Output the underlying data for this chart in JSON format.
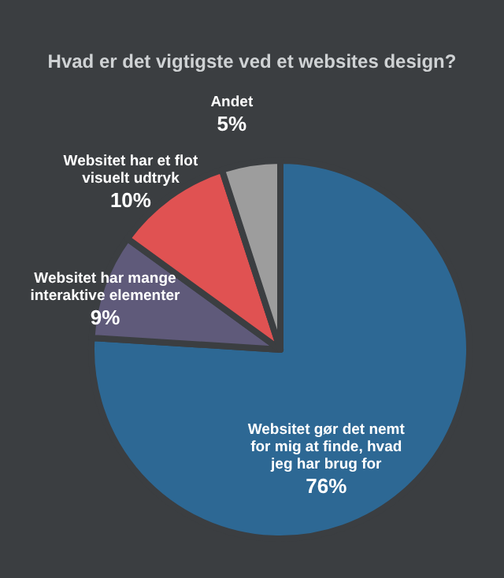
{
  "chart_data": {
    "type": "pie",
    "title": "Hvad er det vigtigste ved et websites design?",
    "categories": [
      "Websitet gør det nemt for mig at finde, hvad jeg har brug for",
      "Websitet har mange interaktive elementer",
      "Websitet har et flot visuelt udtryk",
      "Andet"
    ],
    "values": [
      76,
      9,
      10,
      5
    ],
    "colors": [
      "#2d6894",
      "#5f5a7a",
      "#e05252",
      "#9d9d9d"
    ],
    "value_labels": [
      "76%",
      "9%",
      "10%",
      "5%"
    ],
    "legend": false
  }
}
